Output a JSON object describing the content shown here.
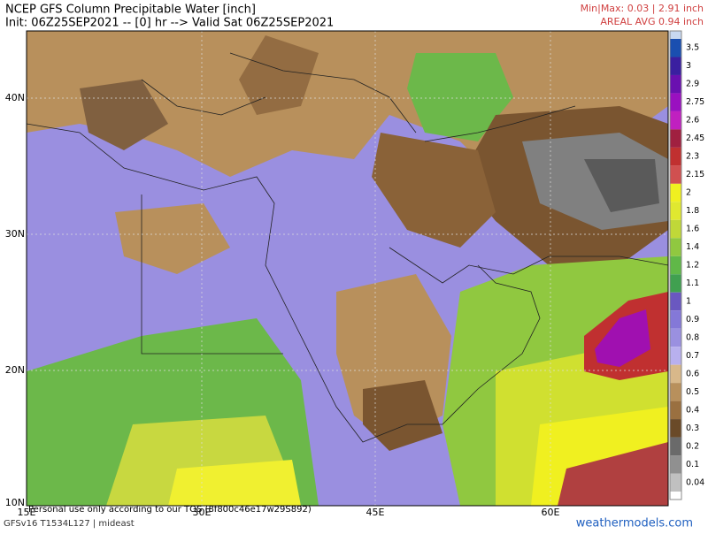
{
  "header": {
    "title": "NCEP GFS Column Precipitable Water [inch]",
    "init": "Init: 06Z25SEP2021 -- [0] hr --> Valid Sat 06Z25SEP2021",
    "minmax": "Min|Max: 0.03 | 2.91 inch",
    "areal_avg": "AREAL AVG 0.94 inch"
  },
  "map": {
    "lat_labels": [
      "40N",
      "30N",
      "20N",
      "10N"
    ],
    "lon_labels": [
      "15E",
      "30E",
      "45E",
      "60E"
    ]
  },
  "colorbar": {
    "levels": [
      3.5,
      3,
      2.9,
      2.75,
      2.6,
      2.45,
      2.3,
      2.15,
      2,
      1.8,
      1.6,
      1.4,
      1.2,
      1.1,
      1,
      0.9,
      0.8,
      0.7,
      0.6,
      0.5,
      0.4,
      0.3,
      0.2,
      0.1,
      0.04
    ],
    "colors": [
      "#1a4fb0",
      "#3a1fa0",
      "#6a10b0",
      "#9a10c0",
      "#c020c0",
      "#a02040",
      "#c03030",
      "#d05050",
      "#f0f020",
      "#e0e830",
      "#c0d838",
      "#90c840",
      "#60b848",
      "#40a050",
      "#6a58c0",
      "#8478d8",
      "#9a90e0",
      "#b8b0ee",
      "#d8b88a",
      "#b8905c",
      "#9a7040",
      "#6a4a28",
      "#6a6a6a",
      "#909090",
      "#c0c0c0"
    ]
  },
  "footer": {
    "tos": "Personal use only according to our TOS (8f800c46e17w29S892)",
    "model": "GFSv16 T1534L127 | mideast",
    "site": "weathermodels.com"
  }
}
